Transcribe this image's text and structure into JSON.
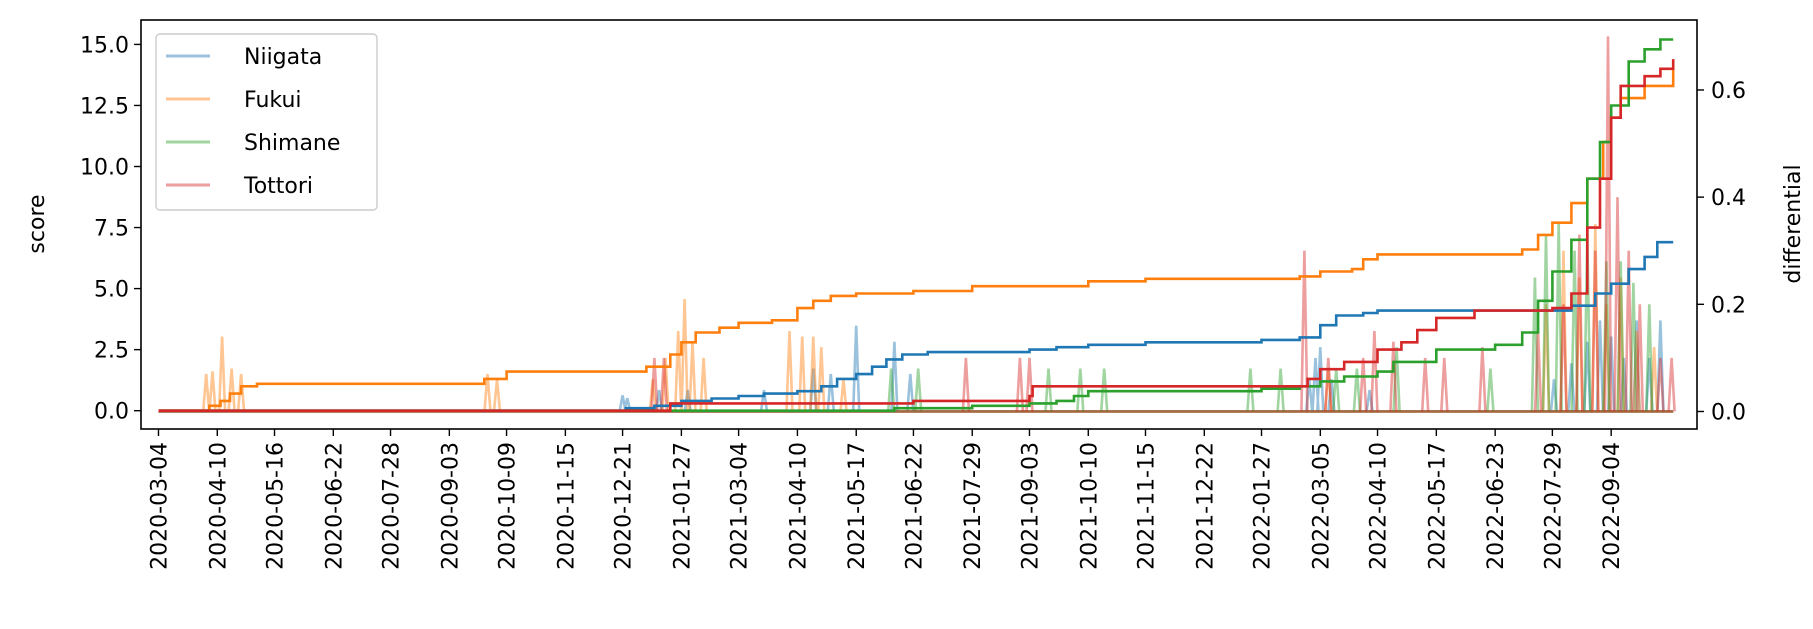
{
  "chart_data": {
    "type": "line",
    "title": "",
    "xlabel": "",
    "ylabel": "score",
    "ylabel_right": "differential",
    "x_range": [
      "2020-02-22",
      "2022-10-28"
    ],
    "ylim": [
      -0.75,
      16.0
    ],
    "ylim_right": [
      -0.0327,
      0.7306
    ],
    "x_ticks": [
      "2020-03-04",
      "2020-04-10",
      "2020-05-16",
      "2020-06-22",
      "2020-07-28",
      "2020-09-03",
      "2020-10-09",
      "2020-11-15",
      "2020-12-21",
      "2021-01-27",
      "2021-03-04",
      "2021-04-10",
      "2021-05-17",
      "2021-06-22",
      "2021-07-29",
      "2021-09-03",
      "2021-10-10",
      "2021-11-15",
      "2021-12-22",
      "2022-01-27",
      "2022-03-05",
      "2022-04-10",
      "2022-05-17",
      "2022-06-23",
      "2022-07-29",
      "2022-09-04"
    ],
    "y_ticks": [
      "0.0",
      "2.5",
      "5.0",
      "7.5",
      "10.0",
      "12.5",
      "15.0"
    ],
    "y_ticks_right": [
      "0.0",
      "0.2",
      "0.4",
      "0.6"
    ],
    "grid": false,
    "legend_position": "upper-left",
    "colors": {
      "Niigata": "#1f77b4",
      "Fukui": "#ff7f0e",
      "Shimane": "#2ca02c",
      "Tottori": "#d62728"
    },
    "score_series": [
      {
        "name": "Niigata",
        "axis": "left",
        "points": [
          [
            "2020-03-04",
            0
          ],
          [
            "2020-12-21",
            0
          ],
          [
            "2020-12-23",
            0.1
          ],
          [
            "2021-01-10",
            0.2
          ],
          [
            "2021-01-27",
            0.4
          ],
          [
            "2021-02-15",
            0.5
          ],
          [
            "2021-03-04",
            0.6
          ],
          [
            "2021-03-20",
            0.7
          ],
          [
            "2021-04-10",
            0.8
          ],
          [
            "2021-04-25",
            1.0
          ],
          [
            "2021-05-05",
            1.3
          ],
          [
            "2021-05-17",
            1.5
          ],
          [
            "2021-05-27",
            1.8
          ],
          [
            "2021-06-05",
            2.1
          ],
          [
            "2021-06-15",
            2.3
          ],
          [
            "2021-07-01",
            2.4
          ],
          [
            "2021-07-29",
            2.4
          ],
          [
            "2021-08-20",
            2.4
          ],
          [
            "2021-09-03",
            2.5
          ],
          [
            "2021-09-20",
            2.6
          ],
          [
            "2021-10-10",
            2.7
          ],
          [
            "2021-11-15",
            2.8
          ],
          [
            "2021-12-22",
            2.8
          ],
          [
            "2022-01-27",
            2.9
          ],
          [
            "2022-02-20",
            3.0
          ],
          [
            "2022-03-05",
            3.5
          ],
          [
            "2022-03-15",
            3.9
          ],
          [
            "2022-04-01",
            4.0
          ],
          [
            "2022-04-10",
            4.1
          ],
          [
            "2022-05-17",
            4.1
          ],
          [
            "2022-06-23",
            4.1
          ],
          [
            "2022-07-29",
            4.1
          ],
          [
            "2022-08-10",
            4.3
          ],
          [
            "2022-08-25",
            4.8
          ],
          [
            "2022-09-04",
            5.2
          ],
          [
            "2022-09-15",
            5.8
          ],
          [
            "2022-09-25",
            6.3
          ],
          [
            "2022-10-03",
            6.9
          ],
          [
            "2022-10-13",
            6.9
          ]
        ]
      },
      {
        "name": "Fukui",
        "axis": "left",
        "points": [
          [
            "2020-03-04",
            0
          ],
          [
            "2020-04-01",
            0
          ],
          [
            "2020-04-05",
            0.2
          ],
          [
            "2020-04-12",
            0.4
          ],
          [
            "2020-04-18",
            0.7
          ],
          [
            "2020-04-25",
            1.0
          ],
          [
            "2020-05-05",
            1.1
          ],
          [
            "2020-06-22",
            1.1
          ],
          [
            "2020-07-28",
            1.1
          ],
          [
            "2020-09-20",
            1.1
          ],
          [
            "2020-09-25",
            1.3
          ],
          [
            "2020-10-09",
            1.6
          ],
          [
            "2020-11-15",
            1.6
          ],
          [
            "2020-12-21",
            1.6
          ],
          [
            "2021-01-05",
            1.8
          ],
          [
            "2021-01-20",
            2.3
          ],
          [
            "2021-01-27",
            2.8
          ],
          [
            "2021-02-05",
            3.2
          ],
          [
            "2021-02-20",
            3.4
          ],
          [
            "2021-03-04",
            3.6
          ],
          [
            "2021-03-25",
            3.7
          ],
          [
            "2021-04-10",
            4.2
          ],
          [
            "2021-04-20",
            4.5
          ],
          [
            "2021-05-01",
            4.7
          ],
          [
            "2021-05-17",
            4.8
          ],
          [
            "2021-06-22",
            4.9
          ],
          [
            "2021-07-29",
            5.1
          ],
          [
            "2021-09-03",
            5.1
          ],
          [
            "2021-10-10",
            5.3
          ],
          [
            "2021-11-15",
            5.4
          ],
          [
            "2021-12-22",
            5.4
          ],
          [
            "2022-01-27",
            5.4
          ],
          [
            "2022-02-20",
            5.5
          ],
          [
            "2022-03-05",
            5.7
          ],
          [
            "2022-03-25",
            5.8
          ],
          [
            "2022-04-01",
            6.2
          ],
          [
            "2022-04-10",
            6.4
          ],
          [
            "2022-05-17",
            6.4
          ],
          [
            "2022-06-23",
            6.4
          ],
          [
            "2022-07-10",
            6.6
          ],
          [
            "2022-07-20",
            7.2
          ],
          [
            "2022-07-29",
            7.7
          ],
          [
            "2022-08-10",
            8.5
          ],
          [
            "2022-08-20",
            9.5
          ],
          [
            "2022-08-30",
            11.0
          ],
          [
            "2022-09-04",
            12.0
          ],
          [
            "2022-09-10",
            12.8
          ],
          [
            "2022-09-25",
            13.3
          ],
          [
            "2022-10-13",
            14.0
          ]
        ]
      },
      {
        "name": "Shimane",
        "axis": "left",
        "points": [
          [
            "2020-03-04",
            0
          ],
          [
            "2021-06-01",
            0
          ],
          [
            "2021-06-10",
            0.1
          ],
          [
            "2021-07-29",
            0.2
          ],
          [
            "2021-09-03",
            0.3
          ],
          [
            "2021-09-20",
            0.4
          ],
          [
            "2021-10-01",
            0.6
          ],
          [
            "2021-10-10",
            0.8
          ],
          [
            "2021-11-15",
            0.8
          ],
          [
            "2021-12-22",
            0.8
          ],
          [
            "2022-01-27",
            0.9
          ],
          [
            "2022-02-20",
            1.0
          ],
          [
            "2022-03-05",
            1.2
          ],
          [
            "2022-03-20",
            1.4
          ],
          [
            "2022-04-10",
            1.6
          ],
          [
            "2022-04-20",
            2.0
          ],
          [
            "2022-05-17",
            2.5
          ],
          [
            "2022-06-23",
            2.7
          ],
          [
            "2022-07-10",
            3.2
          ],
          [
            "2022-07-20",
            4.5
          ],
          [
            "2022-07-29",
            5.7
          ],
          [
            "2022-08-10",
            7.0
          ],
          [
            "2022-08-20",
            9.5
          ],
          [
            "2022-08-28",
            11.0
          ],
          [
            "2022-09-04",
            12.5
          ],
          [
            "2022-09-15",
            14.3
          ],
          [
            "2022-09-25",
            14.8
          ],
          [
            "2022-10-05",
            15.2
          ],
          [
            "2022-10-13",
            15.2
          ]
        ]
      },
      {
        "name": "Tottori",
        "axis": "left",
        "points": [
          [
            "2020-03-04",
            0
          ],
          [
            "2021-01-10",
            0
          ],
          [
            "2021-01-20",
            0.3
          ],
          [
            "2021-03-04",
            0.3
          ],
          [
            "2021-04-10",
            0.3
          ],
          [
            "2021-05-17",
            0.3
          ],
          [
            "2021-06-22",
            0.4
          ],
          [
            "2021-07-29",
            0.4
          ],
          [
            "2021-09-03",
            0.6
          ],
          [
            "2021-09-05",
            1.0
          ],
          [
            "2021-10-10",
            1.0
          ],
          [
            "2021-11-15",
            1.0
          ],
          [
            "2021-12-22",
            1.0
          ],
          [
            "2022-01-27",
            1.0
          ],
          [
            "2022-02-25",
            1.3
          ],
          [
            "2022-03-05",
            1.7
          ],
          [
            "2022-03-20",
            2.0
          ],
          [
            "2022-04-10",
            2.5
          ],
          [
            "2022-04-25",
            2.8
          ],
          [
            "2022-05-05",
            3.3
          ],
          [
            "2022-05-17",
            3.8
          ],
          [
            "2022-06-10",
            4.1
          ],
          [
            "2022-06-23",
            4.1
          ],
          [
            "2022-07-29",
            4.2
          ],
          [
            "2022-08-10",
            4.8
          ],
          [
            "2022-08-20",
            7.5
          ],
          [
            "2022-08-28",
            9.5
          ],
          [
            "2022-09-04",
            12.0
          ],
          [
            "2022-09-10",
            13.3
          ],
          [
            "2022-09-25",
            13.7
          ],
          [
            "2022-10-05",
            14.0
          ],
          [
            "2022-10-13",
            14.4
          ]
        ]
      }
    ],
    "differential_series": [
      {
        "name": "Niigata",
        "axis": "right",
        "spikes": [
          [
            "2020-12-21",
            0.03
          ],
          [
            "2020-12-24",
            0.025
          ],
          [
            "2021-01-13",
            0.04
          ],
          [
            "2021-01-31",
            0.04
          ],
          [
            "2021-03-20",
            0.04
          ],
          [
            "2021-04-20",
            0.08
          ],
          [
            "2021-05-01",
            0.07
          ],
          [
            "2021-05-17",
            0.16
          ],
          [
            "2021-06-10",
            0.13
          ],
          [
            "2021-06-20",
            0.07
          ],
          [
            "2022-02-26",
            0.06
          ],
          [
            "2022-03-02",
            0.1
          ],
          [
            "2022-03-05",
            0.12
          ],
          [
            "2022-03-12",
            0.06
          ],
          [
            "2022-04-05",
            0.04
          ],
          [
            "2022-07-30",
            0.06
          ],
          [
            "2022-08-10",
            0.09
          ],
          [
            "2022-08-20",
            0.13
          ],
          [
            "2022-08-28",
            0.17
          ],
          [
            "2022-09-04",
            0.14
          ],
          [
            "2022-09-12",
            0.1
          ],
          [
            "2022-09-20",
            0.17
          ],
          [
            "2022-09-28",
            0.1
          ],
          [
            "2022-10-05",
            0.17
          ]
        ]
      },
      {
        "name": "Fukui",
        "axis": "right",
        "spikes": [
          [
            "2020-04-03",
            0.07
          ],
          [
            "2020-04-07",
            0.075
          ],
          [
            "2020-04-13",
            0.14
          ],
          [
            "2020-04-19",
            0.08
          ],
          [
            "2020-04-25",
            0.07
          ],
          [
            "2020-09-27",
            0.07
          ],
          [
            "2020-10-03",
            0.06
          ],
          [
            "2021-01-09",
            0.06
          ],
          [
            "2021-01-17",
            0.1
          ],
          [
            "2021-01-25",
            0.15
          ],
          [
            "2021-01-29",
            0.21
          ],
          [
            "2021-02-03",
            0.13
          ],
          [
            "2021-02-10",
            0.1
          ],
          [
            "2021-04-05",
            0.15
          ],
          [
            "2021-04-13",
            0.14
          ],
          [
            "2021-04-20",
            0.14
          ],
          [
            "2021-04-25",
            0.12
          ],
          [
            "2021-05-09",
            0.06
          ],
          [
            "2022-03-10",
            0.08
          ],
          [
            "2022-07-25",
            0.2
          ],
          [
            "2022-08-05",
            0.3
          ],
          [
            "2022-08-15",
            0.25
          ],
          [
            "2022-08-25",
            0.35
          ],
          [
            "2022-09-01",
            0.2
          ],
          [
            "2022-09-10",
            0.25
          ],
          [
            "2022-09-20",
            0.15
          ],
          [
            "2022-10-01",
            0.12
          ]
        ]
      },
      {
        "name": "Shimane",
        "axis": "right",
        "spikes": [
          [
            "2021-06-08",
            0.08
          ],
          [
            "2021-06-25",
            0.08
          ],
          [
            "2021-09-15",
            0.08
          ],
          [
            "2021-10-05",
            0.08
          ],
          [
            "2021-10-20",
            0.08
          ],
          [
            "2022-01-20",
            0.08
          ],
          [
            "2022-02-08",
            0.08
          ],
          [
            "2022-03-15",
            0.08
          ],
          [
            "2022-03-28",
            0.08
          ],
          [
            "2022-04-22",
            0.12
          ],
          [
            "2022-06-20",
            0.08
          ],
          [
            "2022-07-18",
            0.25
          ],
          [
            "2022-07-25",
            0.33
          ],
          [
            "2022-08-02",
            0.35
          ],
          [
            "2022-08-12",
            0.3
          ],
          [
            "2022-08-20",
            0.33
          ],
          [
            "2022-09-01",
            0.28
          ],
          [
            "2022-09-10",
            0.28
          ],
          [
            "2022-09-18",
            0.24
          ],
          [
            "2022-09-28",
            0.2
          ]
        ]
      },
      {
        "name": "Tottori",
        "axis": "right",
        "spikes": [
          [
            "2021-01-10",
            0.1
          ],
          [
            "2021-01-16",
            0.1
          ],
          [
            "2021-07-25",
            0.1
          ],
          [
            "2021-08-28",
            0.1
          ],
          [
            "2021-09-03",
            0.1
          ],
          [
            "2022-02-23",
            0.3
          ],
          [
            "2022-03-10",
            0.1
          ],
          [
            "2022-04-01",
            0.1
          ],
          [
            "2022-04-08",
            0.15
          ],
          [
            "2022-04-20",
            0.13
          ],
          [
            "2022-05-10",
            0.1
          ],
          [
            "2022-05-22",
            0.1
          ],
          [
            "2022-06-15",
            0.12
          ],
          [
            "2022-07-20",
            0.15
          ],
          [
            "2022-08-05",
            0.2
          ],
          [
            "2022-08-15",
            0.33
          ],
          [
            "2022-08-25",
            0.3
          ],
          [
            "2022-09-02",
            0.7
          ],
          [
            "2022-09-08",
            0.4
          ],
          [
            "2022-09-15",
            0.3
          ],
          [
            "2022-09-22",
            0.2
          ],
          [
            "2022-10-05",
            0.1
          ],
          [
            "2022-10-12",
            0.1
          ]
        ]
      }
    ]
  }
}
